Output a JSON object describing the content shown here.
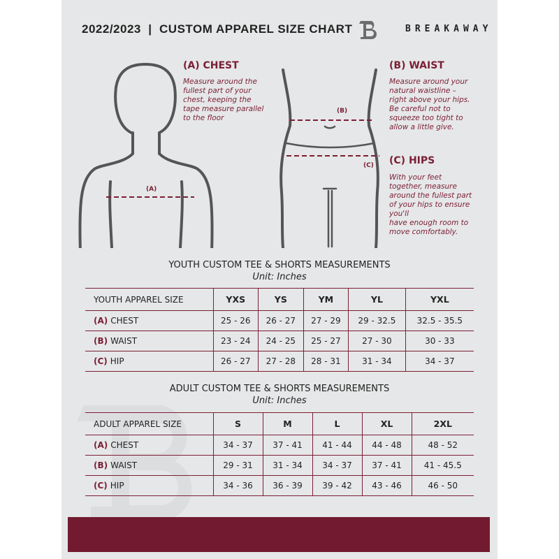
{
  "header": {
    "title": "2022/2023  |  CUSTOM APPAREL SIZE CHART",
    "brand": "BREAKAWAY",
    "logo_letter": "B"
  },
  "guide": {
    "chest": {
      "label": "(A)",
      "heading": "(A) CHEST",
      "text": [
        "Measure around the",
        "fullest part of your",
        "chest, keeping the",
        "tape measure parallel",
        "to the floor"
      ]
    },
    "waist": {
      "label": "(B)",
      "heading": "(B) WAIST",
      "text": [
        "Measure around your",
        "natural waistline –",
        "right above your hips.",
        "Be careful not to",
        "squeeze too tight to",
        "allow a little give."
      ]
    },
    "hips": {
      "label": "(C)",
      "heading": "(C) HIPS",
      "text": [
        "With your feet",
        "together, measure",
        "around the fullest part",
        "of your hips to ensure",
        "you'll",
        "have enough room to",
        "move comfortably."
      ]
    }
  },
  "youth": {
    "title": "YOUTH CUSTOM TEE & SHORTS MEASUREMENTS",
    "unit": "Unit: Inches",
    "size_header": "YOUTH APPAREL SIZE",
    "sizes": [
      "YXS",
      "YS",
      "YM",
      "YL",
      "YXL"
    ],
    "rows": [
      {
        "code": "(A)",
        "name": "CHEST",
        "values": [
          "25 - 26",
          "26 - 27",
          "27 - 29",
          "29 - 32.5",
          "32.5 - 35.5"
        ]
      },
      {
        "code": "(B)",
        "name": "WAIST",
        "values": [
          "23 - 24",
          "24 - 25",
          "25 - 27",
          "27 - 30",
          "30 - 33"
        ]
      },
      {
        "code": "(C)",
        "name": "HIP",
        "values": [
          "26 - 27",
          "27 - 28",
          "28 - 31",
          "31 - 34",
          "34 - 37"
        ]
      }
    ]
  },
  "adult": {
    "title": "ADULT CUSTOM TEE & SHORTS MEASUREMENTS",
    "unit": "Unit: Inches",
    "size_header": "ADULT APPAREL SIZE",
    "sizes": [
      "S",
      "M",
      "L",
      "XL",
      "2XL"
    ],
    "rows": [
      {
        "code": "(A)",
        "name": "CHEST",
        "values": [
          "34 - 37",
          "37 - 41",
          "41 - 44",
          "44 - 48",
          "48 - 52"
        ]
      },
      {
        "code": "(B)",
        "name": "WAIST",
        "values": [
          "29 - 31",
          "31 - 34",
          "34 - 37",
          "37 - 41",
          "41 - 45.5"
        ]
      },
      {
        "code": "(C)",
        "name": "HIP",
        "values": [
          "34 - 36",
          "36 - 39",
          "39 - 42",
          "43 - 46",
          "46 - 50"
        ]
      }
    ]
  },
  "colors": {
    "accent": "#7a1f35",
    "footer": "#721b30",
    "panel": "#e6e7e8"
  }
}
